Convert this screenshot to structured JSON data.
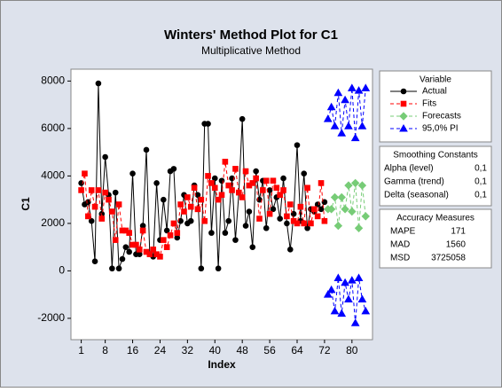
{
  "chart_data": {
    "type": "line",
    "title": "Winters' Method Plot for C1",
    "subtitle": "Multiplicative Method",
    "xlabel": "Index",
    "ylabel": "C1",
    "xlim": [
      -2,
      86
    ],
    "xticks": [
      1,
      8,
      16,
      24,
      32,
      40,
      48,
      56,
      64,
      72,
      80
    ],
    "ylim": [
      -2900,
      8500
    ],
    "yticks": [
      -2000,
      0,
      2000,
      4000,
      6000,
      8000
    ],
    "legend_title": "Variable",
    "series": [
      {
        "name": "Actual",
        "color": "#000000",
        "marker": "circle",
        "dashed": false,
        "x": [
          1,
          2,
          3,
          4,
          5,
          6,
          7,
          8,
          9,
          10,
          11,
          12,
          13,
          14,
          15,
          16,
          17,
          18,
          19,
          20,
          21,
          22,
          23,
          24,
          25,
          26,
          27,
          28,
          29,
          30,
          31,
          32,
          33,
          34,
          35,
          36,
          37,
          38,
          39,
          40,
          41,
          42,
          43,
          44,
          45,
          46,
          47,
          48,
          49,
          50,
          51,
          52,
          53,
          54,
          55,
          56,
          57,
          58,
          59,
          60,
          61,
          62,
          63,
          64,
          65,
          66,
          67,
          68,
          69,
          70,
          71,
          72
        ],
        "values": [
          3700,
          2800,
          2900,
          2100,
          400,
          7900,
          2400,
          4800,
          3200,
          100,
          3300,
          100,
          500,
          1000,
          800,
          4100,
          700,
          700,
          1900,
          5100,
          700,
          600,
          3700,
          1300,
          3000,
          1700,
          4200,
          4300,
          1400,
          2100,
          3200,
          2000,
          2100,
          3600,
          3200,
          100,
          6200,
          6200,
          1600,
          3900,
          100,
          3800,
          1600,
          2100,
          3900,
          1300,
          3300,
          6400,
          1900,
          2500,
          1000,
          4200,
          3000,
          3800,
          1800,
          3400,
          2600,
          3100,
          2200,
          3900,
          2000,
          900,
          2400,
          5300,
          2100,
          4100,
          1800,
          2600,
          2500,
          2800,
          2600,
          2900
        ]
      },
      {
        "name": "Fits",
        "color": "#ff0000",
        "marker": "square",
        "dashed": true,
        "x": [
          1,
          2,
          3,
          4,
          5,
          6,
          7,
          8,
          9,
          10,
          11,
          12,
          13,
          14,
          15,
          16,
          17,
          18,
          19,
          20,
          21,
          22,
          23,
          24,
          25,
          26,
          27,
          28,
          29,
          30,
          31,
          32,
          33,
          34,
          35,
          36,
          37,
          38,
          39,
          40,
          41,
          42,
          43,
          44,
          45,
          46,
          47,
          48,
          49,
          50,
          51,
          52,
          53,
          54,
          55,
          56,
          57,
          58,
          59,
          60,
          61,
          62,
          63,
          64,
          65,
          66,
          67,
          68,
          69,
          70,
          71,
          72
        ],
        "values": [
          3400,
          4100,
          2300,
          3400,
          2700,
          3400,
          2200,
          3300,
          3000,
          2500,
          1300,
          2800,
          1700,
          1700,
          1600,
          1100,
          1100,
          900,
          1700,
          800,
          700,
          900,
          700,
          600,
          1300,
          1000,
          1500,
          2000,
          1600,
          2800,
          2500,
          3100,
          2700,
          3500,
          2600,
          3000,
          2100,
          4000,
          3700,
          3500,
          3000,
          3200,
          4600,
          3600,
          3400,
          4300,
          3300,
          3100,
          4200,
          3600,
          3700,
          3900,
          2200,
          3400,
          3800,
          2400,
          3800,
          3500,
          3200,
          3400,
          2300,
          2800,
          2100,
          2000,
          2700,
          2000,
          3500,
          2000,
          2600,
          2300,
          3700,
          2100
        ]
      },
      {
        "name": "Forecasts",
        "color": "#77cc77",
        "marker": "diamond",
        "dashed": true,
        "x": [
          73,
          74,
          75,
          76,
          77,
          78,
          79,
          80,
          81,
          82,
          83,
          84
        ],
        "values": [
          2600,
          2600,
          3100,
          1900,
          3100,
          2600,
          3600,
          2500,
          3700,
          1800,
          3600,
          2300
        ]
      },
      {
        "name": "95,0% PI",
        "color": "#0000ff",
        "marker": "triangle",
        "dashed": true,
        "x": [
          73,
          74,
          75,
          76,
          77,
          78,
          79,
          80,
          81,
          82,
          83,
          84
        ],
        "values": [
          6400,
          6900,
          6100,
          7500,
          5800,
          7200,
          6100,
          7700,
          5600,
          7600,
          6100,
          7700
        ],
        "lower": [
          -1000,
          -800,
          -1700,
          -300,
          -1800,
          -500,
          -1200,
          -400,
          -2200,
          -300,
          -1200,
          -1700
        ]
      }
    ],
    "smoothing": {
      "title": "Smoothing Constants",
      "rows": [
        [
          "Alpha (level)",
          "0,1"
        ],
        [
          "Gamma (trend)",
          "0,1"
        ],
        [
          "Delta (seasonal)",
          "0,1"
        ]
      ]
    },
    "accuracy": {
      "title": "Accuracy Measures",
      "rows": [
        [
          "MAPE",
          171
        ],
        [
          "MAD",
          1560
        ],
        [
          "MSD",
          3725058
        ]
      ]
    }
  }
}
